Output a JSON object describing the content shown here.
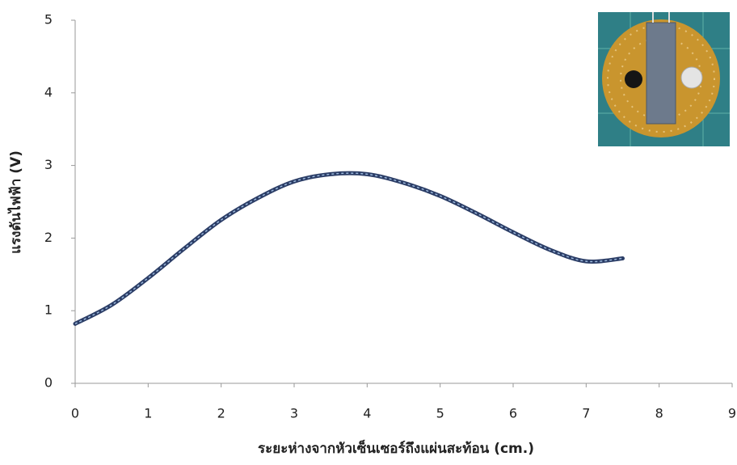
{
  "chart_data": {
    "type": "line",
    "x_label": "ระยะห่างจากหัวเซ็นเซอร์ถึงแผ่นสะท้อน (cm.)",
    "y_label": "แรงดันไฟฟ้า (V)",
    "x": [
      0,
      0.5,
      1,
      1.5,
      2,
      2.5,
      3,
      3.5,
      4,
      4.5,
      5,
      5.5,
      6,
      6.5,
      7,
      7.5
    ],
    "series": [
      {
        "color": "#2b3d66",
        "values": [
          0.82,
          1.08,
          1.45,
          1.86,
          2.25,
          2.55,
          2.78,
          2.88,
          2.88,
          2.76,
          2.58,
          2.34,
          2.08,
          1.84,
          1.68,
          1.72
        ]
      }
    ],
    "xlim": [
      0,
      9
    ],
    "xticks": [
      0,
      1,
      2,
      3,
      4,
      5,
      6,
      7,
      8,
      9
    ],
    "ylim": [
      0,
      5
    ],
    "yticks": [
      0,
      1,
      2,
      3,
      4,
      5
    ],
    "grid": false
  }
}
